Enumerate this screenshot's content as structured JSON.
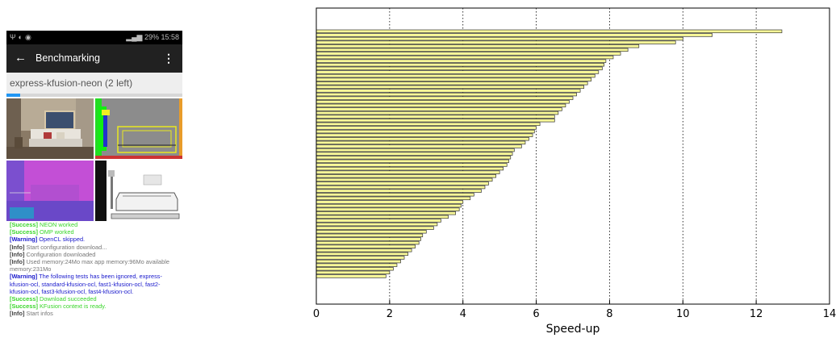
{
  "phone": {
    "status_bar": {
      "left_icons": [
        "usb-icon",
        "shield-icon",
        "cat-icon"
      ],
      "battery": "29%",
      "time": "15:58"
    },
    "app_bar": {
      "title": "Benchmarking",
      "back_icon": "arrow-left-icon",
      "menu_icon": "more-vert-icon"
    },
    "benchmark_name": "express-kfusion-neon (2 left)",
    "progress_fraction": 0.08,
    "frames": [
      "rgb-input",
      "tracking",
      "depth",
      "volume-render"
    ],
    "log": [
      {
        "level": "success",
        "tag": "[Success]",
        "text": "NEON worked"
      },
      {
        "level": "success",
        "tag": "[Success]",
        "text": "OMP worked"
      },
      {
        "level": "warning",
        "tag": "[Warning]",
        "text": "OpenCL skipped."
      },
      {
        "level": "info",
        "tag": "[Info]",
        "text": "Start configuration download..."
      },
      {
        "level": "info",
        "tag": "[Info]",
        "text": "Configuration downloaded"
      },
      {
        "level": "info",
        "tag": "[Info]",
        "text": "Used memory:24Mo max app memory:96Mo available memory:231Mo"
      },
      {
        "level": "warning",
        "tag": "[Warning]",
        "text": "The following tests has been ignored, express-kfusion-ocl, standard-kfusion-ocl, fast1-kfusion-ocl, fast2-kfusion-ocl, fast3-kfusion-ocl, fast4-kfusion-ocl."
      },
      {
        "level": "success",
        "tag": "[Success]",
        "text": "Download succeeded"
      },
      {
        "level": "success",
        "tag": "[Success]",
        "text": "KFusion context is ready."
      },
      {
        "level": "info",
        "tag": "[Info]",
        "text": "Start infos"
      }
    ]
  },
  "chart_data": {
    "type": "bar",
    "orientation": "horizontal",
    "title": "",
    "xlabel": "Speed-up",
    "ylabel": "",
    "xlim": [
      0,
      14
    ],
    "xticks": [
      "0",
      "2",
      "4",
      "6",
      "8",
      "10",
      "12",
      "14"
    ],
    "grid": "vertical dotted at x ticks",
    "bar_color": "#f8f898",
    "edge_color": "#333333",
    "values": [
      12.7,
      10.8,
      10.0,
      9.8,
      8.8,
      8.5,
      8.3,
      8.1,
      7.9,
      7.85,
      7.8,
      7.7,
      7.6,
      7.5,
      7.4,
      7.3,
      7.2,
      7.1,
      7.0,
      6.9,
      6.8,
      6.7,
      6.6,
      6.5,
      6.5,
      6.1,
      6.0,
      5.95,
      5.9,
      5.8,
      5.7,
      5.6,
      5.4,
      5.35,
      5.3,
      5.25,
      5.2,
      5.1,
      5.0,
      4.9,
      4.8,
      4.7,
      4.6,
      4.5,
      4.3,
      4.2,
      4.0,
      3.95,
      3.9,
      3.8,
      3.6,
      3.4,
      3.3,
      3.2,
      3.0,
      2.9,
      2.85,
      2.8,
      2.7,
      2.6,
      2.5,
      2.4,
      2.3,
      2.2,
      2.1,
      2.0,
      1.9
    ]
  }
}
